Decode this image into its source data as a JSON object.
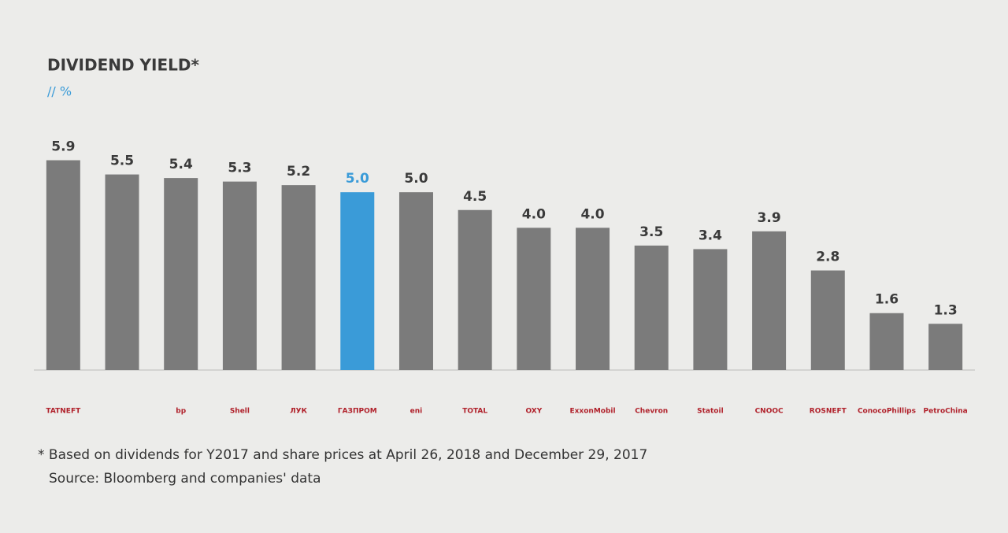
{
  "chart_data": {
    "type": "bar",
    "title": "DIVIDEND YIELD*",
    "subtitle": "// %",
    "categories": [
      "TATNEFT",
      null,
      "bp",
      "Shell",
      "ЛУК",
      "ГАЗПРОМ",
      "eni",
      "TOTAL",
      "OXY",
      "ExxonMobil",
      "Chevron",
      "Statoil",
      "CNOOC",
      "ROSNEFT",
      "ConocoPhillips",
      "PetroChina"
    ],
    "values": [
      5.9,
      5.5,
      5.4,
      5.3,
      5.2,
      5.0,
      5.0,
      4.5,
      4.0,
      4.0,
      3.5,
      3.4,
      3.9,
      2.8,
      1.6,
      1.3
    ],
    "value_labels": [
      "5.9",
      "5.5",
      "5.4",
      "5.3",
      "5.2",
      "5.0",
      "5.0",
      "4.5",
      "4.0",
      "4.0",
      "3.5",
      "3.4",
      "3.9",
      "2.8",
      "1.6",
      "1.3"
    ],
    "colors": [
      "#7b7b7b",
      "#7b7b7b",
      "#7b7b7b",
      "#7b7b7b",
      "#7b7b7b",
      "#3a9bd8",
      "#7b7b7b",
      "#7b7b7b",
      "#7b7b7b",
      "#7b7b7b",
      "#7b7b7b",
      "#7b7b7b",
      "#7b7b7b",
      "#7b7b7b",
      "#7b7b7b",
      "#7b7b7b"
    ],
    "ylim": [
      0,
      6
    ],
    "notes": [
      "* Based on dividends for Y2017 and share prices at April 26, 2018 and December 29, 2017",
      "Source: Bloomberg and companies' data"
    ]
  }
}
